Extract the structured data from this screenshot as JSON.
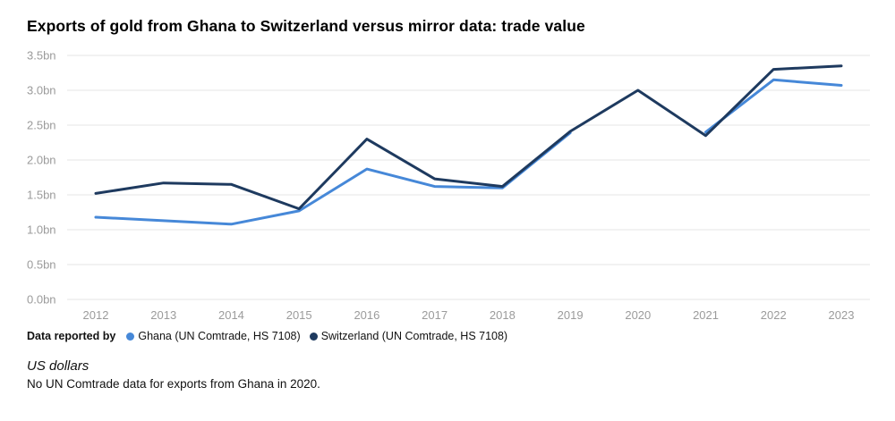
{
  "title": "Exports of gold from Ghana to Switzerland versus mirror data: trade value",
  "chart_data": {
    "type": "line",
    "x": [
      2012,
      2013,
      2014,
      2015,
      2016,
      2017,
      2018,
      2019,
      2020,
      2021,
      2022,
      2023
    ],
    "series": [
      {
        "name": "Ghana (UN Comtrade, HS 7108)",
        "color": "#4688d8",
        "values": [
          1.18,
          1.13,
          1.08,
          1.27,
          1.87,
          1.62,
          1.6,
          2.39,
          null,
          2.4,
          3.15,
          3.07
        ]
      },
      {
        "name": "Switzerland (UN Comtrade, HS 7108)",
        "color": "#1e3a5f",
        "values": [
          1.52,
          1.67,
          1.65,
          1.3,
          2.3,
          1.73,
          1.62,
          2.41,
          3.0,
          2.35,
          3.3,
          3.35
        ]
      }
    ],
    "yticks": [
      "0.0bn",
      "0.5bn",
      "1.0bn",
      "1.5bn",
      "2.0bn",
      "2.5bn",
      "3.0bn",
      "3.5bn"
    ],
    "ylim": [
      0,
      3.5
    ],
    "ytick_step": 0.5,
    "grid": true,
    "gridline_color": "#e6e6e6",
    "tick_label_color": "#9b9b9b",
    "legend_position": "bottom"
  },
  "legend": {
    "prefix": "Data reported by",
    "items": [
      {
        "label": "Ghana (UN Comtrade, HS 7108)"
      },
      {
        "label": "Switzerland (UN Comtrade, HS 7108)"
      }
    ]
  },
  "footer": {
    "unit": "US dollars",
    "note": "No UN Comtrade data for exports from Ghana in 2020."
  }
}
